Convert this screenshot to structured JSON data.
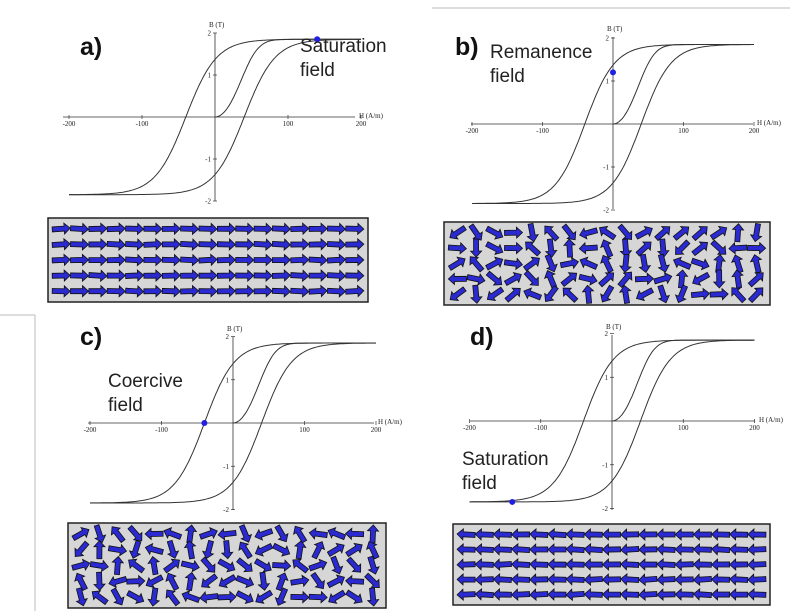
{
  "axis": {
    "x_label": "H (A/m)",
    "y_label": "B (T)",
    "xticks": [
      "-200",
      "-100",
      "100",
      "200"
    ],
    "yticks": [
      "2",
      "1",
      "-1",
      "-2"
    ]
  },
  "panels": [
    {
      "label": "a)",
      "annotation": [
        "Saturation",
        "field"
      ]
    },
    {
      "label": "b)",
      "annotation": [
        "Remanence",
        "field"
      ]
    },
    {
      "label": "c)",
      "annotation": [
        "Coercive",
        "field"
      ]
    },
    {
      "label": "d)",
      "annotation": [
        "Saturation",
        "field"
      ]
    }
  ]
}
